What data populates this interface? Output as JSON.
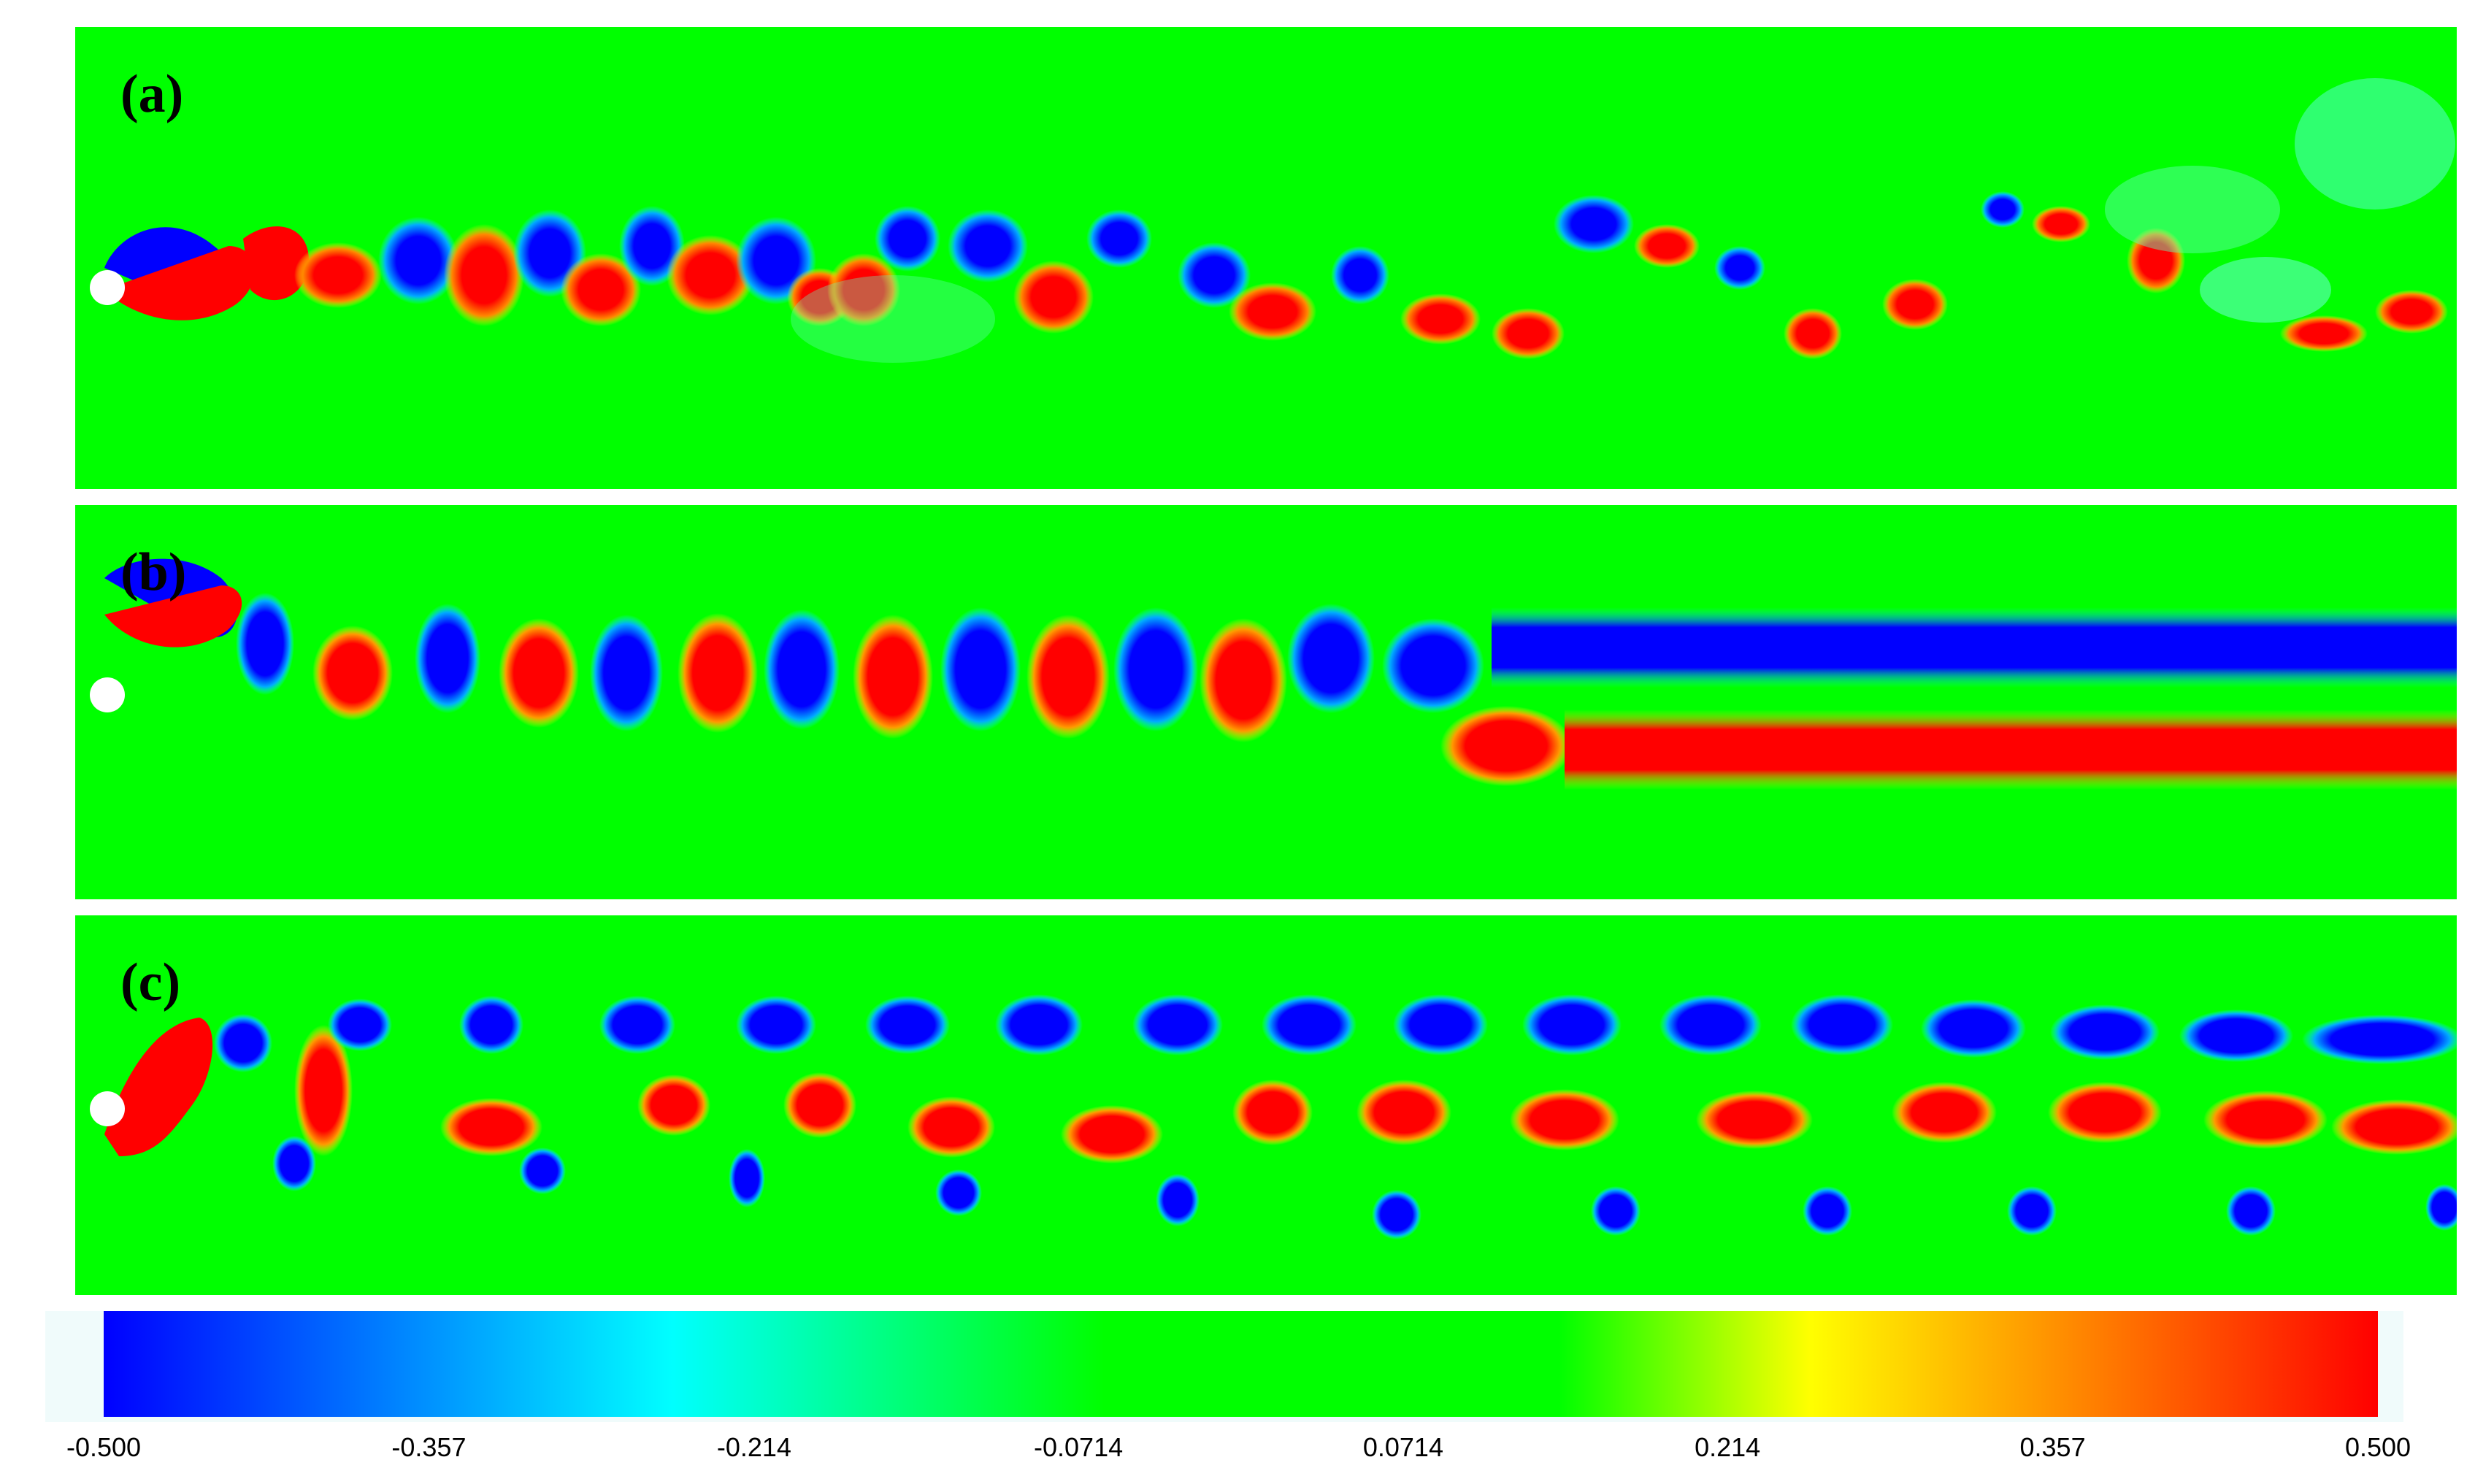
{
  "panels": [
    {
      "label": "(a)"
    },
    {
      "label": "(b)"
    },
    {
      "label": "(c)"
    }
  ],
  "colorbar": {
    "min": -0.5,
    "max": 0.5,
    "ticks": [
      "-0.500",
      "-0.357",
      "-0.214",
      "-0.0714",
      "0.0714",
      "0.214",
      "0.357",
      "0.500"
    ],
    "colors": [
      "#0000ff",
      "#00ffff",
      "#00ff00",
      "#ffff00",
      "#ff0000"
    ]
  },
  "colors": {
    "background": "#00ff00",
    "positive": "#ff0000",
    "negative": "#0000ff",
    "cylinder": "#ffffff"
  }
}
